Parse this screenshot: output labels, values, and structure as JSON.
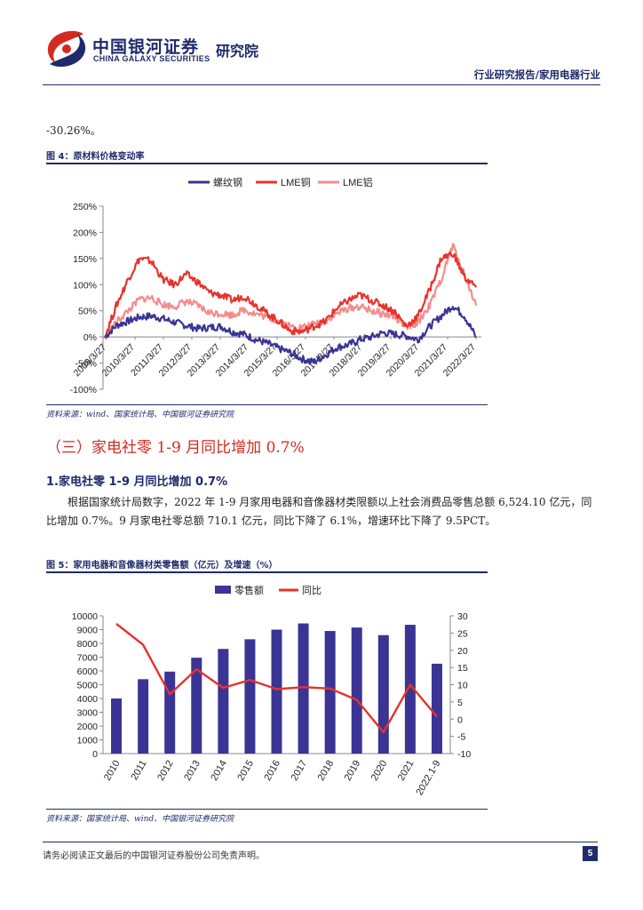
{
  "header": {
    "logo_cn": "中国银河证券",
    "logo_en": "CHINA GALAXY SECURITIES",
    "institute": "研究院",
    "report_type": "行业研究报告/家用电器行业"
  },
  "intro_text": "-30.26%。",
  "figure4": {
    "caption": "图 4：原材料价格变动率",
    "source": "资料来源：wind、国家统计局、中国银河证券研究院"
  },
  "section3": {
    "title": "（三）家电社零 1-9 月同比增加 0.7%",
    "subtitle": "1.家电社零 1-9 月同比增加 0.7%",
    "paragraph": "根据国家统计局数字，2022 年 1-9 月家用电器和音像器材类限额以上社会消费品零售总额 6,524.10 亿元，同比增加 0.7%。9 月家电社零总额 710.1 亿元，同比下降了 6.1%，增速环比下降了 9.5PCT。"
  },
  "figure5": {
    "caption": "图 5：家用电器和音像器材类零售额（亿元）及增速（%）",
    "source": "资料来源：国家统计局、wind、中国银河证券研究院"
  },
  "footer": {
    "disclaimer": "请务必阅读正文最后的中国银河证券股份公司免责声明。",
    "page": "5"
  },
  "colors": {
    "navy": "#1f2a6b",
    "red": "#e8322c",
    "pink": "#f58c8c",
    "bar": "#3a3495"
  },
  "chart_data": [
    {
      "type": "line",
      "legend_position": "top",
      "x_tick_labels": [
        "2009/3/27",
        "2010/3/27",
        "2011/3/27",
        "2012/3/27",
        "2013/3/27",
        "2014/3/27",
        "2015/3/27",
        "2016/3/27",
        "2017/3/27",
        "2018/3/27",
        "2019/3/27",
        "2020/3/27",
        "2021/3/27",
        "2022/3/27"
      ],
      "y_tick_labels": [
        "-100%",
        "-50%",
        "0%",
        "50%",
        "100%",
        "150%",
        "200%",
        "250%"
      ],
      "ylim": [
        -100,
        250
      ],
      "grid": false,
      "series": [
        {
          "name": "螺纹钢",
          "color": "#3a3495",
          "values": [
            0,
            22,
            30,
            38,
            40,
            35,
            28,
            22,
            16,
            18,
            20,
            10,
            5,
            -5,
            -12,
            -22,
            -30,
            -42,
            -48,
            -35,
            -20,
            -15,
            -5,
            0,
            8,
            5,
            2,
            -5,
            20,
            40,
            60,
            40,
            0
          ]
        },
        {
          "name": "LME铜",
          "color": "#e8322c",
          "values": [
            0,
            60,
            110,
            150,
            145,
            110,
            100,
            120,
            105,
            85,
            80,
            70,
            78,
            62,
            45,
            30,
            12,
            10,
            20,
            30,
            55,
            70,
            80,
            70,
            60,
            48,
            20,
            40,
            90,
            150,
            160,
            115,
            95
          ]
        },
        {
          "name": "LME铝",
          "color": "#f58c8c",
          "values": [
            0,
            28,
            50,
            72,
            75,
            62,
            58,
            68,
            60,
            46,
            45,
            42,
            52,
            44,
            38,
            30,
            20,
            18,
            24,
            30,
            45,
            55,
            58,
            50,
            44,
            38,
            18,
            28,
            60,
            110,
            175,
            120,
            60
          ]
        }
      ]
    },
    {
      "type": "bar",
      "legend_position": "top",
      "categories": [
        "2010",
        "2011",
        "2012",
        "2013",
        "2014",
        "2015",
        "2016",
        "2017",
        "2018",
        "2019",
        "2020",
        "2021",
        "2022.1-9"
      ],
      "y_tick_labels_left": [
        "0",
        "1000",
        "2000",
        "3000",
        "4000",
        "5000",
        "6000",
        "7000",
        "8000",
        "9000",
        "10000"
      ],
      "y_tick_labels_right": [
        "-10",
        "-5",
        "0",
        "5",
        "10",
        "15",
        "20",
        "25",
        "30"
      ],
      "ylim_left": [
        0,
        10000
      ],
      "ylim_right": [
        -10,
        30
      ],
      "series": [
        {
          "name": "零售额",
          "kind": "bar",
          "color": "#3a3495",
          "values": [
            4000,
            5400,
            5950,
            6960,
            7600,
            8300,
            9000,
            9450,
            8900,
            9150,
            8600,
            9350,
            6524.1
          ]
        },
        {
          "name": "同比",
          "kind": "line",
          "color": "#e8322c",
          "values": [
            27.7,
            21.6,
            7.2,
            14.5,
            9.1,
            11.4,
            8.7,
            9.3,
            8.9,
            5.6,
            -3.8,
            10.0,
            0.7
          ]
        }
      ]
    }
  ]
}
